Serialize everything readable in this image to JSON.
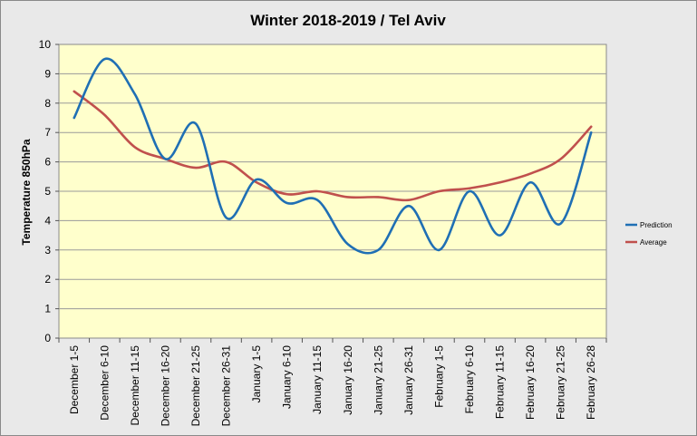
{
  "chart_data": {
    "type": "line",
    "title": "Winter 2018-2019 / Tel Aviv",
    "xlabel": "",
    "ylabel": "Temperature 850hPa",
    "ylim": [
      0,
      10
    ],
    "yticks": [
      0,
      1,
      2,
      3,
      4,
      5,
      6,
      7,
      8,
      9,
      10
    ],
    "grid": true,
    "legend_position": "right",
    "categories": [
      "December 1-5",
      "December 6-10",
      "December 11-15",
      "December 16-20",
      "December 21-25",
      "December 26-31",
      "January 1-5",
      "January 6-10",
      "January 11-15",
      "January 16-20",
      "January 21-25",
      "January 26-31",
      "February 1-5",
      "February 6-10",
      "February 11-15",
      "February 16-20",
      "February 21-25",
      "February 26-28"
    ],
    "series": [
      {
        "name": "Prediction",
        "color": "#1f6fb4",
        "values": [
          7.5,
          9.5,
          8.3,
          6.1,
          7.3,
          4.1,
          5.4,
          4.6,
          4.7,
          3.2,
          3.0,
          4.5,
          3.0,
          5.0,
          3.5,
          5.3,
          3.9,
          7.0
        ]
      },
      {
        "name": "Average",
        "color": "#c0504d",
        "values": [
          8.4,
          7.6,
          6.5,
          6.1,
          5.8,
          6.0,
          5.3,
          4.9,
          5.0,
          4.8,
          4.8,
          4.7,
          5.0,
          5.1,
          5.3,
          5.6,
          6.1,
          7.2
        ]
      }
    ],
    "colors": {
      "plot_background": "#ffffcc",
      "chart_background": "#e9e9e9",
      "gridline": "#9a9a9a"
    }
  }
}
